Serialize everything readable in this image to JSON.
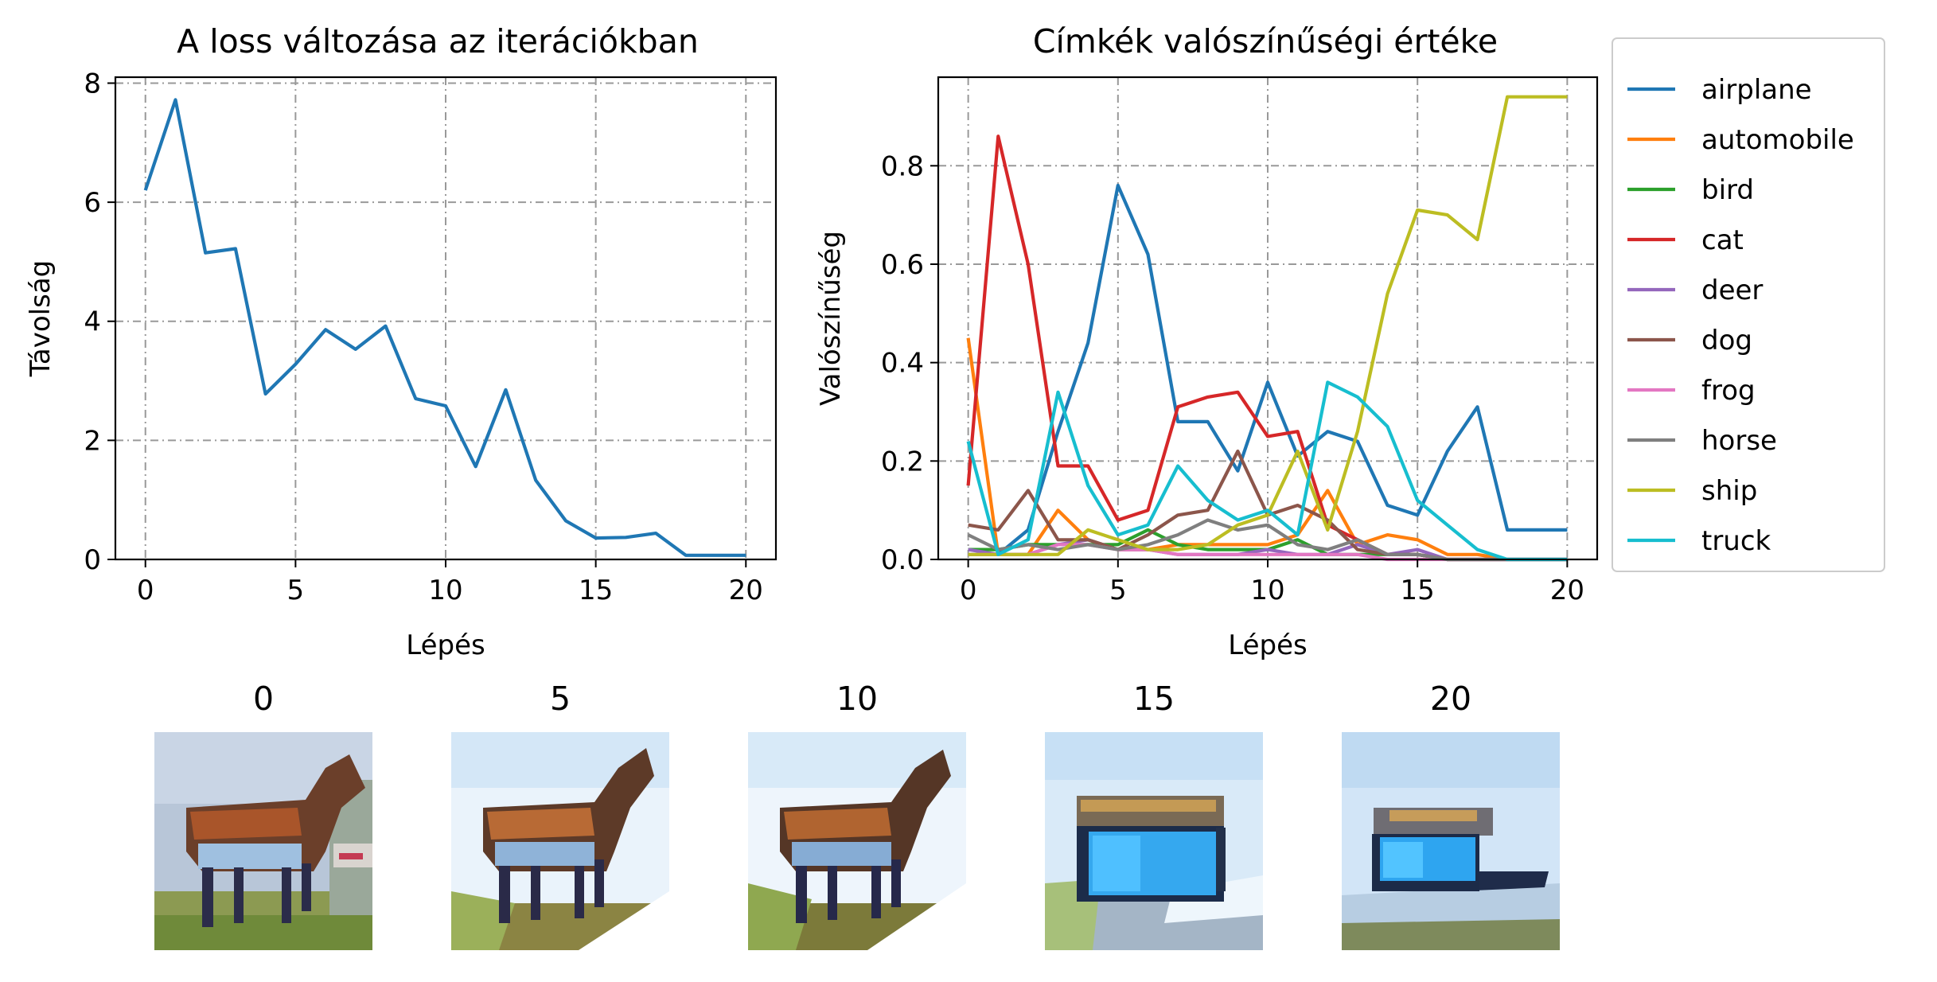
{
  "chart_data": [
    {
      "type": "line",
      "title": "A loss változása az iterációkban",
      "xlabel": "Lépés",
      "ylabel": "Távolság",
      "xlim": [
        -1,
        21
      ],
      "ylim": [
        0,
        8.1
      ],
      "xticks": [
        "0",
        "5",
        "10",
        "15",
        "20"
      ],
      "yticks": [
        "0",
        "2",
        "4",
        "6",
        "8"
      ],
      "grid": true,
      "x": [
        0,
        1,
        2,
        3,
        4,
        5,
        6,
        7,
        8,
        9,
        10,
        11,
        12,
        13,
        14,
        15,
        16,
        17,
        18,
        19,
        20
      ],
      "series": [
        {
          "color": "#1f77b4",
          "values": [
            6.2,
            7.72,
            5.15,
            5.22,
            2.78,
            3.28,
            3.86,
            3.53,
            3.92,
            2.7,
            2.58,
            1.56,
            2.85,
            1.33,
            0.65,
            0.36,
            0.37,
            0.44,
            0.07,
            0.07,
            0.07
          ]
        }
      ]
    },
    {
      "type": "line",
      "title": "Címkék valószínűségi értéke",
      "xlabel": "Lépés",
      "ylabel": "Valószínűség",
      "xlim": [
        -1,
        21
      ],
      "ylim": [
        0,
        0.98
      ],
      "xticks": [
        "0",
        "5",
        "10",
        "15",
        "20"
      ],
      "yticks": [
        "0.0",
        "0.2",
        "0.4",
        "0.6",
        "0.8"
      ],
      "grid": true,
      "legend_position": "outside-right",
      "x": [
        0,
        1,
        2,
        3,
        4,
        5,
        6,
        7,
        8,
        9,
        10,
        11,
        12,
        13,
        14,
        15,
        16,
        17,
        18,
        19,
        20
      ],
      "series": [
        {
          "name": "airplane",
          "color": "#1f77b4",
          "values": [
            0.01,
            0.01,
            0.06,
            0.26,
            0.44,
            0.76,
            0.62,
            0.28,
            0.28,
            0.18,
            0.36,
            0.21,
            0.26,
            0.24,
            0.11,
            0.09,
            0.22,
            0.31,
            0.06,
            0.06,
            0.06
          ]
        },
        {
          "name": "automobile",
          "color": "#ff7f0e",
          "values": [
            0.45,
            0.01,
            0.01,
            0.1,
            0.04,
            0.02,
            0.02,
            0.03,
            0.03,
            0.03,
            0.03,
            0.05,
            0.14,
            0.03,
            0.05,
            0.04,
            0.01,
            0.01,
            0.0,
            0.0,
            0.0
          ]
        },
        {
          "name": "bird",
          "color": "#2ca02c",
          "values": [
            0.02,
            0.02,
            0.03,
            0.03,
            0.03,
            0.03,
            0.06,
            0.03,
            0.02,
            0.02,
            0.02,
            0.04,
            0.01,
            0.01,
            0.01,
            0.01,
            0.0,
            0.0,
            0.0,
            0.0,
            0.0
          ]
        },
        {
          "name": "cat",
          "color": "#d62728",
          "values": [
            0.15,
            0.86,
            0.6,
            0.19,
            0.19,
            0.08,
            0.1,
            0.31,
            0.33,
            0.34,
            0.25,
            0.26,
            0.07,
            0.04,
            0.01,
            0.01,
            0.0,
            0.0,
            0.0,
            0.0,
            0.0
          ]
        },
        {
          "name": "deer",
          "color": "#9467bd",
          "values": [
            0.02,
            0.01,
            0.01,
            0.03,
            0.04,
            0.02,
            0.02,
            0.01,
            0.01,
            0.01,
            0.02,
            0.01,
            0.01,
            0.03,
            0.01,
            0.02,
            0.0,
            0.0,
            0.0,
            0.0,
            0.0
          ]
        },
        {
          "name": "dog",
          "color": "#8c564b",
          "values": [
            0.07,
            0.06,
            0.14,
            0.04,
            0.04,
            0.02,
            0.05,
            0.09,
            0.1,
            0.22,
            0.09,
            0.11,
            0.08,
            0.02,
            0.01,
            0.01,
            0.0,
            0.0,
            0.0,
            0.0,
            0.0
          ]
        },
        {
          "name": "frog",
          "color": "#e377c2",
          "values": [
            0.01,
            0.01,
            0.01,
            0.03,
            0.03,
            0.02,
            0.02,
            0.01,
            0.01,
            0.01,
            0.01,
            0.01,
            0.01,
            0.01,
            0.0,
            0.0,
            0.0,
            0.0,
            0.0,
            0.0,
            0.0
          ]
        },
        {
          "name": "horse",
          "color": "#7f7f7f",
          "values": [
            0.05,
            0.02,
            0.03,
            0.02,
            0.03,
            0.02,
            0.03,
            0.05,
            0.08,
            0.06,
            0.07,
            0.03,
            0.02,
            0.04,
            0.01,
            0.01,
            0.0,
            0.0,
            0.0,
            0.0,
            0.0
          ]
        },
        {
          "name": "ship",
          "color": "#bcbd22",
          "values": [
            0.01,
            0.01,
            0.01,
            0.01,
            0.06,
            0.04,
            0.02,
            0.02,
            0.03,
            0.07,
            0.09,
            0.22,
            0.06,
            0.26,
            0.54,
            0.71,
            0.7,
            0.65,
            0.94,
            0.94,
            0.94
          ]
        },
        {
          "name": "truck",
          "color": "#17becf",
          "values": [
            0.24,
            0.01,
            0.04,
            0.34,
            0.15,
            0.05,
            0.07,
            0.19,
            0.12,
            0.08,
            0.1,
            0.05,
            0.36,
            0.33,
            0.27,
            0.12,
            0.07,
            0.02,
            0.0,
            0.0,
            0.0
          ]
        }
      ]
    }
  ],
  "snapshots": [
    {
      "label": "0",
      "subject": "horse",
      "background": "#b9c7d6",
      "ground": "#6f8a3a"
    },
    {
      "label": "5",
      "subject": "horse",
      "background": "#e4f0fb",
      "ground": "#8a8a4a"
    },
    {
      "label": "10",
      "subject": "horse",
      "background": "#e8f2fb",
      "ground": "#7e7e3c"
    },
    {
      "label": "15",
      "subject": "ship",
      "background": "#d6e8f8",
      "ground": "#9ab26a"
    },
    {
      "label": "20",
      "subject": "ship",
      "background": "#cfe3f6",
      "ground": "#7d8a5a"
    }
  ]
}
